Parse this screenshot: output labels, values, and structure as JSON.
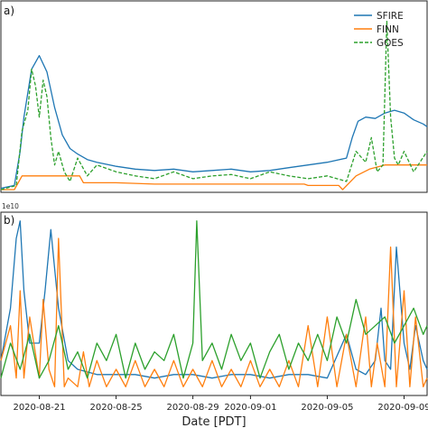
{
  "chart_data": [
    {
      "panel": "a)",
      "type": "line",
      "x_unit": "days since 2020-08-19 00:00 PDT",
      "series": [
        {
          "name": "SFIRE",
          "color": "#1f77b4",
          "dash": "solid",
          "x": [
            0,
            0.7,
            1,
            1.2,
            1.6,
            2,
            2.4,
            2.8,
            3.2,
            3.6,
            4,
            4.5,
            5,
            6,
            7,
            8,
            9,
            10,
            11,
            12,
            13,
            14,
            15,
            16,
            17,
            18,
            18.3,
            18.6,
            19,
            19.5,
            20,
            20.5,
            21,
            21.5,
            22,
            22.2
          ],
          "y": [
            0.03,
            0.05,
            0.3,
            0.55,
            0.9,
            1.0,
            0.88,
            0.62,
            0.42,
            0.32,
            0.28,
            0.24,
            0.22,
            0.19,
            0.17,
            0.16,
            0.17,
            0.15,
            0.16,
            0.17,
            0.15,
            0.16,
            0.18,
            0.2,
            0.22,
            0.25,
            0.4,
            0.52,
            0.55,
            0.54,
            0.58,
            0.6,
            0.58,
            0.53,
            0.5,
            0.48
          ]
        },
        {
          "name": "FINN",
          "color": "#ff7f0e",
          "dash": "solid",
          "x": [
            0,
            0.7,
            1.1,
            1.6,
            2.2,
            3,
            4.1,
            4.3,
            6,
            8,
            10,
            12,
            14,
            15.8,
            16,
            17.6,
            17.8,
            18.5,
            19.2,
            20,
            21,
            22.2
          ],
          "y": [
            0.02,
            0.02,
            0.12,
            0.12,
            0.12,
            0.12,
            0.12,
            0.07,
            0.07,
            0.06,
            0.06,
            0.06,
            0.06,
            0.06,
            0.05,
            0.05,
            0.02,
            0.12,
            0.17,
            0.2,
            0.2,
            0.2
          ]
        },
        {
          "name": "GOES",
          "color": "#2ca02c",
          "dash": "dashed",
          "x": [
            0,
            0.8,
            1.1,
            1.4,
            1.6,
            1.8,
            2.0,
            2.2,
            2.4,
            2.6,
            2.8,
            3.0,
            3.3,
            3.6,
            4,
            4.5,
            5,
            6,
            7,
            8,
            9,
            10,
            11,
            12,
            13,
            14,
            15,
            16,
            17,
            18,
            18.5,
            19,
            19.3,
            19.6,
            19.9,
            20.1,
            20.3,
            20.5,
            20.7,
            21,
            21.5,
            22.2
          ],
          "y": [
            0.02,
            0.05,
            0.45,
            0.6,
            0.9,
            0.78,
            0.55,
            0.82,
            0.7,
            0.4,
            0.2,
            0.3,
            0.15,
            0.08,
            0.25,
            0.12,
            0.2,
            0.15,
            0.12,
            0.1,
            0.15,
            0.1,
            0.12,
            0.13,
            0.1,
            0.15,
            0.12,
            0.1,
            0.12,
            0.08,
            0.3,
            0.22,
            0.4,
            0.15,
            0.2,
            1.25,
            0.55,
            0.25,
            0.2,
            0.3,
            0.15,
            0.3
          ]
        }
      ],
      "legend": [
        "SFIRE",
        "FINN",
        "GOES"
      ],
      "legend_loc": "upper-right",
      "ylim": [
        0,
        1.4
      ],
      "panel_label": "a)"
    },
    {
      "panel": "b)",
      "type": "line",
      "x_unit": "days since 2020-08-19 00:00 PDT",
      "scale_note": "1e10",
      "series": [
        {
          "name": "SFIRE",
          "color": "#1f77b4",
          "dash": "solid",
          "x": [
            0,
            0.5,
            0.8,
            1.0,
            1.2,
            1.5,
            2.0,
            2.3,
            2.6,
            3.0,
            3.5,
            4,
            5,
            6,
            7,
            8,
            9,
            10,
            11,
            12,
            13,
            14,
            15,
            16,
            17,
            18,
            18.5,
            19,
            19.5,
            19.8,
            20,
            20.3,
            20.6,
            21,
            21.3,
            21.6,
            22,
            22.2
          ],
          "y": [
            0.2,
            0.5,
            0.9,
            1.0,
            0.6,
            0.3,
            0.3,
            0.6,
            0.95,
            0.5,
            0.2,
            0.15,
            0.12,
            0.12,
            0.12,
            0.1,
            0.12,
            0.12,
            0.1,
            0.12,
            0.12,
            0.1,
            0.12,
            0.12,
            0.1,
            0.35,
            0.15,
            0.12,
            0.2,
            0.5,
            0.2,
            0.15,
            0.85,
            0.3,
            0.15,
            0.4,
            0.2,
            0.15
          ]
        },
        {
          "name": "FINN",
          "color": "#ff7f0e",
          "dash": "solid",
          "x": [
            0,
            0.5,
            0.8,
            1,
            1.2,
            1.5,
            2,
            2.2,
            2.5,
            2.8,
            3.0,
            3.3,
            3.5,
            4,
            4.3,
            4.6,
            5,
            5.5,
            6,
            6.5,
            7,
            7.5,
            8,
            8.5,
            9,
            9.5,
            10,
            10.5,
            11,
            11.5,
            12,
            12.5,
            13,
            13.5,
            14,
            14.5,
            15,
            15.5,
            16,
            16.5,
            17,
            17.5,
            18,
            18.5,
            19,
            19.3,
            19.6,
            20,
            20.3,
            20.6,
            21,
            21.3,
            21.6,
            22,
            22.2
          ],
          "y": [
            0.2,
            0.4,
            0.1,
            0.6,
            0.1,
            0.45,
            0.1,
            0.55,
            0.15,
            0.05,
            0.9,
            0.05,
            0.1,
            0.05,
            0.25,
            0.05,
            0.2,
            0.05,
            0.15,
            0.05,
            0.2,
            0.05,
            0.15,
            0.05,
            0.2,
            0.05,
            0.15,
            0.05,
            0.2,
            0.05,
            0.15,
            0.05,
            0.2,
            0.05,
            0.15,
            0.05,
            0.2,
            0.05,
            0.4,
            0.05,
            0.45,
            0.05,
            0.35,
            0.05,
            0.45,
            0.05,
            0.3,
            0.05,
            0.85,
            0.05,
            0.6,
            0.05,
            0.45,
            0.05,
            0.1
          ]
        },
        {
          "name": "GOES",
          "color": "#2ca02c",
          "dash": "solid",
          "x": [
            0,
            0.5,
            1,
            1.5,
            2,
            2.5,
            3,
            3.5,
            4,
            4.5,
            5,
            5.5,
            6,
            6.5,
            7,
            7.5,
            8,
            8.5,
            9,
            9.5,
            10,
            10.2,
            10.5,
            11,
            11.5,
            12,
            12.5,
            13,
            13.5,
            14,
            14.5,
            15,
            15.5,
            16,
            16.5,
            17,
            17.5,
            18,
            18.5,
            19,
            19.5,
            20,
            20.5,
            21,
            21.5,
            22,
            22.2
          ],
          "y": [
            0.1,
            0.3,
            0.15,
            0.35,
            0.1,
            0.2,
            0.4,
            0.15,
            0.25,
            0.1,
            0.3,
            0.2,
            0.35,
            0.1,
            0.3,
            0.15,
            0.25,
            0.2,
            0.35,
            0.1,
            0.3,
            1.0,
            0.2,
            0.3,
            0.15,
            0.35,
            0.2,
            0.3,
            0.1,
            0.25,
            0.35,
            0.15,
            0.3,
            0.2,
            0.35,
            0.2,
            0.45,
            0.3,
            0.55,
            0.35,
            0.4,
            0.45,
            0.3,
            0.4,
            0.5,
            0.35,
            0.4
          ]
        }
      ],
      "ylim": [
        0,
        1.05
      ],
      "panel_label": "b)",
      "xlabel": "Date [PDT]",
      "x_ticks": [
        {
          "x": 2,
          "label": "2020-08-21"
        },
        {
          "x": 6,
          "label": "2020-08-25"
        },
        {
          "x": 10,
          "label": "2020-08-29"
        },
        {
          "x": 13,
          "label": "2020-09-01"
        },
        {
          "x": 17,
          "label": "2020-09-05"
        },
        {
          "x": 21,
          "label": "2020-09-09"
        }
      ],
      "xlim": [
        0,
        22.2
      ]
    }
  ]
}
